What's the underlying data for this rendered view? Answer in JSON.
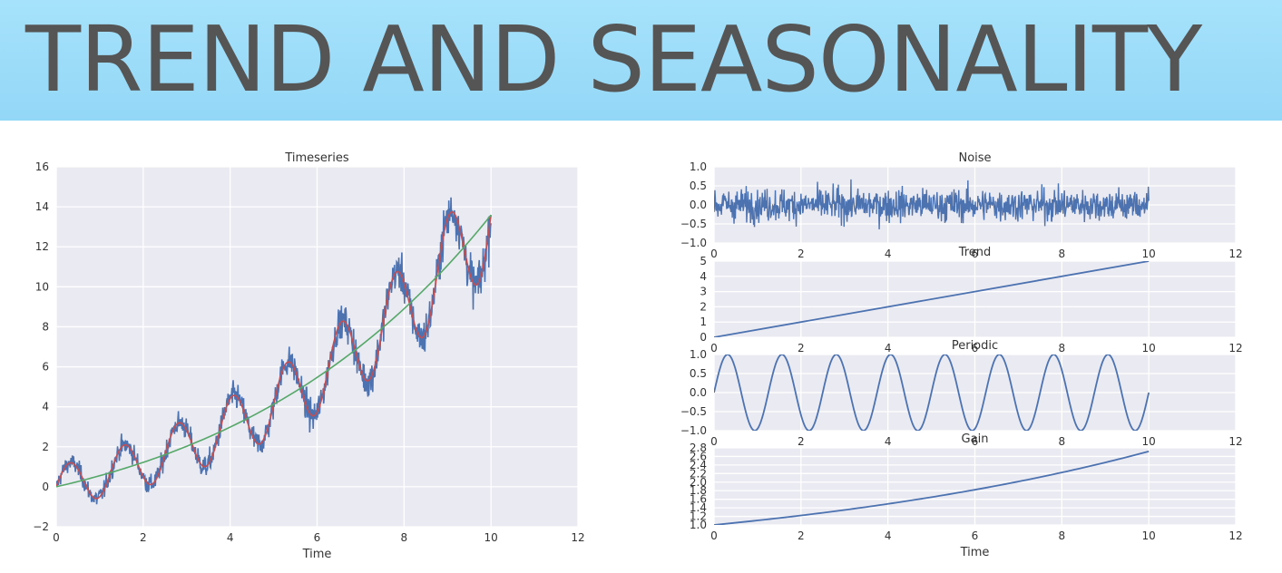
{
  "page": {
    "title": "TREND AND SEASONALITY"
  },
  "colors": {
    "plot_bg": "#eaeaf2",
    "grid": "#ffffff",
    "series_blue": "#4c72b0",
    "series_green": "#55a868",
    "series_red": "#c44e52",
    "text": "#333333",
    "banner_bg": "#9ddcf9",
    "banner_text": "#555555"
  },
  "chart_data": [
    {
      "id": "timeseries",
      "type": "line",
      "title": "Timeseries",
      "xlabel": "Time",
      "ylabel": "",
      "xlim": [
        0,
        12
      ],
      "ylim": [
        -2,
        16
      ],
      "xticks": [
        "0",
        "2",
        "4",
        "6",
        "8",
        "10",
        "12"
      ],
      "yticks": [
        "−2",
        "0",
        "2",
        "4",
        "6",
        "8",
        "10",
        "12",
        "14",
        "16"
      ],
      "grid": true,
      "legend": "none",
      "series": [
        {
          "color": "#4c72b0",
          "x_range": [
            0,
            10
          ],
          "formula": "(1 + 0.5*t) * (1.7^(t/10)) * ... noisy observed series",
          "samples": {
            "x": [
              0,
              1,
              2,
              3,
              4,
              5,
              6,
              7,
              8,
              9,
              10
            ],
            "y": [
              0.0,
              1.2,
              0.3,
              3.1,
              2.6,
              6.0,
              3.6,
              8.2,
              8.0,
              14.2,
              11.9
            ]
          }
        },
        {
          "color": "#c44e52",
          "x_range": [
            0,
            10
          ],
          "description_source": "smooth periodic component",
          "samples": {
            "x": [
              0,
              0.9,
              1.6,
              2.9,
              3.6,
              4.1,
              5.3,
              5.9,
              6.6,
              7.1,
              8.0,
              8.5,
              9.2,
              10
            ],
            "y": [
              0.2,
              -0.5,
              1.9,
              3.1,
              0.9,
              4.5,
              6.0,
              3.5,
              8.2,
              5.2,
              10.9,
              6.5,
              13.9,
              11.8
            ]
          }
        },
        {
          "color": "#55a868",
          "x_range": [
            0,
            10
          ],
          "samples": {
            "x": [
              0,
              2,
              4,
              6,
              8,
              10
            ],
            "y": [
              0,
              1.15,
              2.7,
              4.8,
              8.1,
              13.5
            ]
          }
        }
      ]
    },
    {
      "id": "noise",
      "type": "line",
      "title": "Noise",
      "xlabel": "",
      "xlim": [
        0,
        12
      ],
      "ylim": [
        -1.0,
        1.0
      ],
      "xticks": [
        "0",
        "2",
        "4",
        "6",
        "8",
        "10",
        "12"
      ],
      "yticks": [
        "−1.0",
        "−0.5",
        "0.0",
        "0.5",
        "1.0"
      ],
      "grid": true,
      "series": [
        {
          "color": "#4c72b0",
          "x_range": [
            0,
            10
          ],
          "amplitude": 0.3
        }
      ]
    },
    {
      "id": "trend",
      "type": "line",
      "title": "Trend",
      "xlabel": "",
      "xlim": [
        0,
        12
      ],
      "ylim": [
        0,
        5
      ],
      "xticks": [
        "0",
        "2",
        "4",
        "6",
        "8",
        "10",
        "12"
      ],
      "yticks": [
        "0",
        "1",
        "2",
        "3",
        "4",
        "5"
      ],
      "grid": true,
      "series": [
        {
          "color": "#4c72b0",
          "x": [
            0,
            10
          ],
          "y": [
            0,
            5
          ]
        }
      ]
    },
    {
      "id": "periodic",
      "type": "line",
      "title": "Periodic",
      "xlabel": "",
      "xlim": [
        0,
        12
      ],
      "ylim": [
        -1.0,
        1.0
      ],
      "xticks": [
        "0",
        "2",
        "4",
        "6",
        "8",
        "10",
        "12"
      ],
      "yticks": [
        "−1.0",
        "−0.5",
        "0.0",
        "0.5",
        "1.0"
      ],
      "grid": true,
      "series": [
        {
          "color": "#4c72b0",
          "x_range": [
            0,
            10
          ],
          "period": 1.25,
          "y_start": 0,
          "y_end": -0.3
        }
      ]
    },
    {
      "id": "gain",
      "type": "line",
      "title": "Gain",
      "xlabel": "Time",
      "xlim": [
        0,
        12
      ],
      "ylim": [
        1.0,
        2.8
      ],
      "xticks": [
        "0",
        "2",
        "4",
        "6",
        "8",
        "10",
        "12"
      ],
      "yticks": [
        "1.0",
        "1.2",
        "1.4",
        "1.6",
        "1.8",
        "2.0",
        "2.2",
        "2.4",
        "2.6",
        "2.8"
      ],
      "grid": true,
      "series": [
        {
          "color": "#4c72b0",
          "x": [
            0,
            2,
            4,
            6,
            8,
            10
          ],
          "y": [
            1.0,
            1.22,
            1.49,
            1.82,
            2.22,
            2.72
          ]
        }
      ]
    }
  ]
}
